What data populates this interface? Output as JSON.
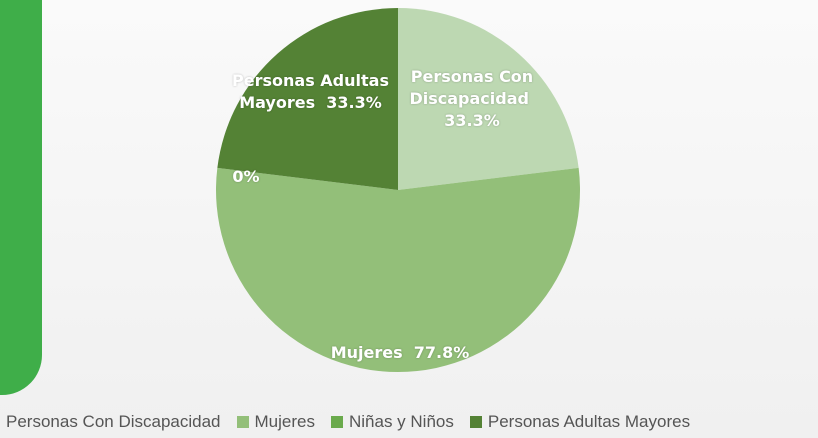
{
  "chart_data": {
    "type": "pie",
    "categories": [
      "Personas Con Discapacidad",
      "Mujeres",
      "Niñas y Niños",
      "Personas Adultas Mayores"
    ],
    "values": [
      33.3,
      77.8,
      0,
      33.3
    ],
    "value_labels": [
      "33.3%",
      "77.8%",
      "0%",
      "33.3%"
    ],
    "colors": [
      "#bdd8b2",
      "#93bf79",
      "#6aaa4c",
      "#548235"
    ],
    "legend": "bottom"
  }
}
